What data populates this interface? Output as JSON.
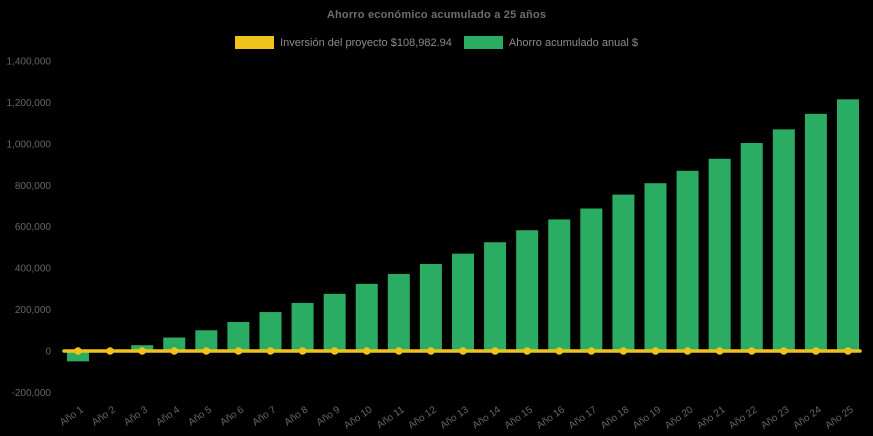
{
  "page": {
    "background_color": "#000000",
    "text_color": "#6e6e6e"
  },
  "title": "Ahorro económico acumulado a 25 años",
  "legend": {
    "items": [
      {
        "label": "Inversión del proyecto $108,982.94",
        "color": "#EFC31C",
        "series_type": "line"
      },
      {
        "label": "Ahorro acumulado anual $",
        "color": "#2BAC63",
        "series_type": "bar"
      }
    ]
  },
  "axis": {
    "y_tick_labels": [
      "1,400,000",
      "1,200,000",
      "1,000,000",
      "800,000",
      "600,000",
      "400,000",
      "200,000",
      "0",
      "-200,000"
    ],
    "x_tick_labels": [
      "Año 1",
      "Año 2",
      "Año 3",
      "Año 4",
      "Año 5",
      "Año 6",
      "Año 7",
      "Año 8",
      "Año 9",
      "Año 10",
      "Año 11",
      "Año 12",
      "Año 13",
      "Año 14",
      "Año 15",
      "Año 16",
      "Año 17",
      "Año 18",
      "Año 19",
      "Año 20",
      "Año 21",
      "Año 22",
      "Año 23",
      "Año 24",
      "Año 25"
    ]
  },
  "chart_data": {
    "type": "bar",
    "title": "Ahorro económico acumulado a 25 años",
    "xlabel": "",
    "ylabel": "",
    "categories": [
      "Año 1",
      "Año 2",
      "Año 3",
      "Año 4",
      "Año 5",
      "Año 6",
      "Año 7",
      "Año 8",
      "Año 9",
      "Año 10",
      "Año 11",
      "Año 12",
      "Año 13",
      "Año 14",
      "Año 15",
      "Año 16",
      "Año 17",
      "Año 18",
      "Año 19",
      "Año 20",
      "Año 21",
      "Año 22",
      "Año 23",
      "Año 24",
      "Año 25"
    ],
    "series": [
      {
        "name": "Inversión del proyecto $108,982.94",
        "type": "line",
        "color": "#EFC31C",
        "marker": "circle",
        "legend_amount": 108982.94,
        "values": [
          0,
          0,
          0,
          0,
          0,
          0,
          0,
          0,
          0,
          0,
          0,
          0,
          0,
          0,
          0,
          0,
          0,
          0,
          0,
          0,
          0,
          0,
          0,
          0,
          0
        ]
      },
      {
        "name": "Ahorro acumulado anual $",
        "type": "bar",
        "color": "#2BAC63",
        "values": [
          -50000,
          5000,
          28000,
          65000,
          100000,
          140000,
          188000,
          232000,
          276000,
          324000,
          372000,
          420000,
          470000,
          525000,
          583000,
          635000,
          688000,
          755000,
          810000,
          870000,
          928000,
          1004000,
          1070000,
          1145000,
          1215000
        ]
      }
    ],
    "ylim": [
      -200000,
      1400000
    ],
    "ytick_step": 200000,
    "grid": false,
    "background": "#000000",
    "legend_position": "top-center"
  }
}
